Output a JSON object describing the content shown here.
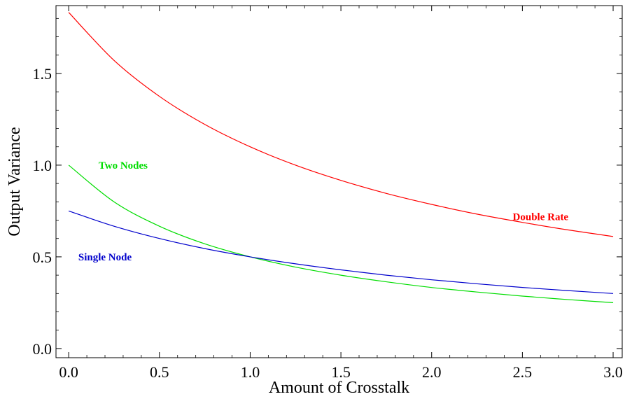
{
  "chart_data": {
    "type": "line",
    "title": "",
    "xlabel": "Amount of Crosstalk",
    "ylabel": "Output Variance",
    "xlim": [
      -0.07,
      3.05
    ],
    "ylim": [
      -0.05,
      1.87
    ],
    "xticks": [
      {
        "value": 0.0,
        "label": "0.0"
      },
      {
        "value": 0.5,
        "label": "0.5"
      },
      {
        "value": 1.0,
        "label": "1.0"
      },
      {
        "value": 1.5,
        "label": "1.5"
      },
      {
        "value": 2.0,
        "label": "2.0"
      },
      {
        "value": 2.5,
        "label": "2.5"
      },
      {
        "value": 3.0,
        "label": "3.0"
      }
    ],
    "yticks": [
      {
        "value": 0.0,
        "label": "0.0"
      },
      {
        "value": 0.5,
        "label": "0.5"
      },
      {
        "value": 1.0,
        "label": "1.0"
      },
      {
        "value": 1.5,
        "label": "1.5"
      }
    ],
    "grid": false,
    "x": [
      0.0,
      0.25,
      0.5,
      0.75,
      1.0,
      1.25,
      1.5,
      1.75,
      2.0,
      2.25,
      2.5,
      2.75,
      3.0
    ],
    "series": [
      {
        "name": "Double Rate",
        "color": "#ff0000",
        "values": [
          1.833,
          1.571,
          1.375,
          1.222,
          1.1,
          1.0,
          0.917,
          0.846,
          0.786,
          0.733,
          0.688,
          0.647,
          0.611
        ],
        "label_at": {
          "x": 2.6,
          "y": 0.72
        }
      },
      {
        "name": "Two Nodes",
        "color": "#00dd00",
        "values": [
          1.0,
          0.8,
          0.667,
          0.571,
          0.5,
          0.444,
          0.4,
          0.364,
          0.333,
          0.308,
          0.286,
          0.267,
          0.25
        ],
        "label_at": {
          "x": 0.3,
          "y": 1.0
        }
      },
      {
        "name": "Single Node",
        "color": "#0000cc",
        "values": [
          0.75,
          0.667,
          0.6,
          0.545,
          0.5,
          0.462,
          0.429,
          0.4,
          0.375,
          0.353,
          0.333,
          0.316,
          0.3
        ],
        "label_at": {
          "x": 0.2,
          "y": 0.5
        }
      }
    ]
  }
}
